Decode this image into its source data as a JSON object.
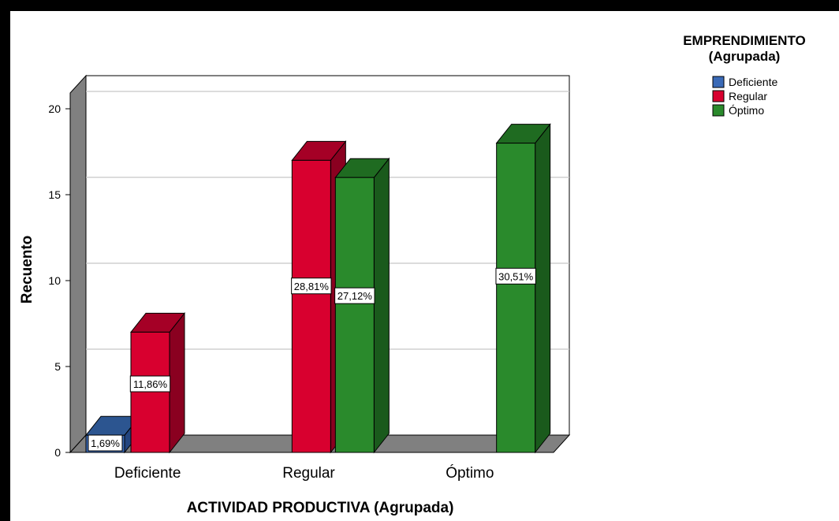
{
  "chart_data": {
    "type": "bar",
    "variant": "3d-clustered",
    "xlabel": "ACTIVIDAD PRODUCTIVA (Agrupada)",
    "ylabel": "Recuento",
    "categories": [
      "Deficiente",
      "Regular",
      "Óptimo"
    ],
    "ylim": [
      0,
      20
    ],
    "yticks": [
      0,
      5,
      10,
      15,
      20
    ],
    "grid": true,
    "legend": {
      "title_line1": "EMPRENDIMIENTO",
      "title_line2": "(Agrupada)",
      "placement": "top-right"
    },
    "series": [
      {
        "name": "Deficiente",
        "color": "#3a6ab7",
        "side": "#23457f",
        "top": "#2c5590",
        "values": [
          1,
          0,
          0
        ],
        "labels": [
          "1,69%",
          "",
          ""
        ]
      },
      {
        "name": "Regular",
        "color": "#d8002f",
        "side": "#8a0020",
        "top": "#a50026",
        "values": [
          7,
          17,
          0
        ],
        "labels": [
          "11,86%",
          "28,81%",
          ""
        ]
      },
      {
        "name": "Óptimo",
        "color": "#2a8a2c",
        "side": "#1a5a1c",
        "top": "#1f6b21",
        "values": [
          0,
          16,
          18
        ],
        "labels": [
          "",
          "27,12%",
          "30,51%"
        ]
      }
    ],
    "wall_color": "#808080"
  }
}
